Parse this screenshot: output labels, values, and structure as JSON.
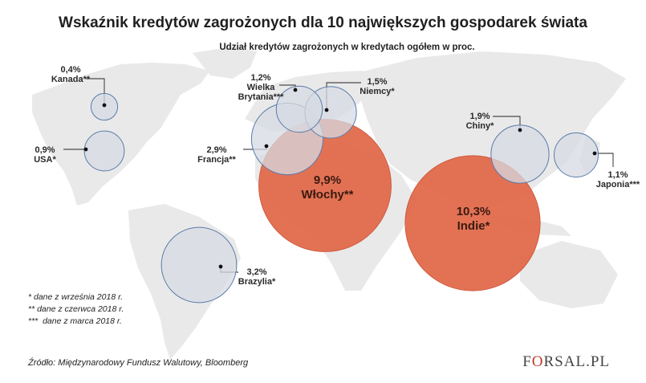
{
  "title": "Wskaźnik kredytów zagrożonych dla 10 największych gospodarek świata",
  "subtitle": "Udział kredytów zagrożonych w kredytach ogółem w proc.",
  "chart_data": {
    "type": "bubble-map",
    "unit": "proc.",
    "points": [
      {
        "country": "Kanada**",
        "value": 0.4,
        "value_label": "0,4%",
        "kind": "low"
      },
      {
        "country": "USA*",
        "value": 0.9,
        "value_label": "0,9%",
        "kind": "low"
      },
      {
        "country": "Wielka Brytania***",
        "line1": "Wielka",
        "line2": "Brytania***",
        "value": 1.2,
        "value_label": "1,2%",
        "kind": "low"
      },
      {
        "country": "Niemcy*",
        "value": 1.5,
        "value_label": "1,5%",
        "kind": "low"
      },
      {
        "country": "Francja**",
        "value": 2.9,
        "value_label": "2,9%",
        "kind": "low"
      },
      {
        "country": "Włochy**",
        "value": 9.9,
        "value_label": "9,9%",
        "kind": "high"
      },
      {
        "country": "Chiny*",
        "value": 1.9,
        "value_label": "1,9%",
        "kind": "low"
      },
      {
        "country": "Japonia***",
        "value": 1.1,
        "value_label": "1,1%",
        "kind": "low"
      },
      {
        "country": "Indie*",
        "value": 10.3,
        "value_label": "10,3%",
        "kind": "high"
      },
      {
        "country": "Brazylia*",
        "value": 3.2,
        "value_label": "3,2%",
        "kind": "low"
      }
    ],
    "colors": {
      "low_fill": "#d5dbe3",
      "low_stroke": "#5a7aa8",
      "high_fill": "#e26a4c",
      "high_stroke": "#d05a3e",
      "map": "#e9e9e9"
    }
  },
  "notes": [
    "* dane z września 2018 r.",
    "** dane z czerwca 2018 r.",
    "***  dane z marca 2018 r."
  ],
  "source": "Źródło: Międzynarodowy Fundusz Walutowy, Bloomberg",
  "logo": {
    "pre": "F",
    "accent": "O",
    "post": "RSAL.PL"
  }
}
